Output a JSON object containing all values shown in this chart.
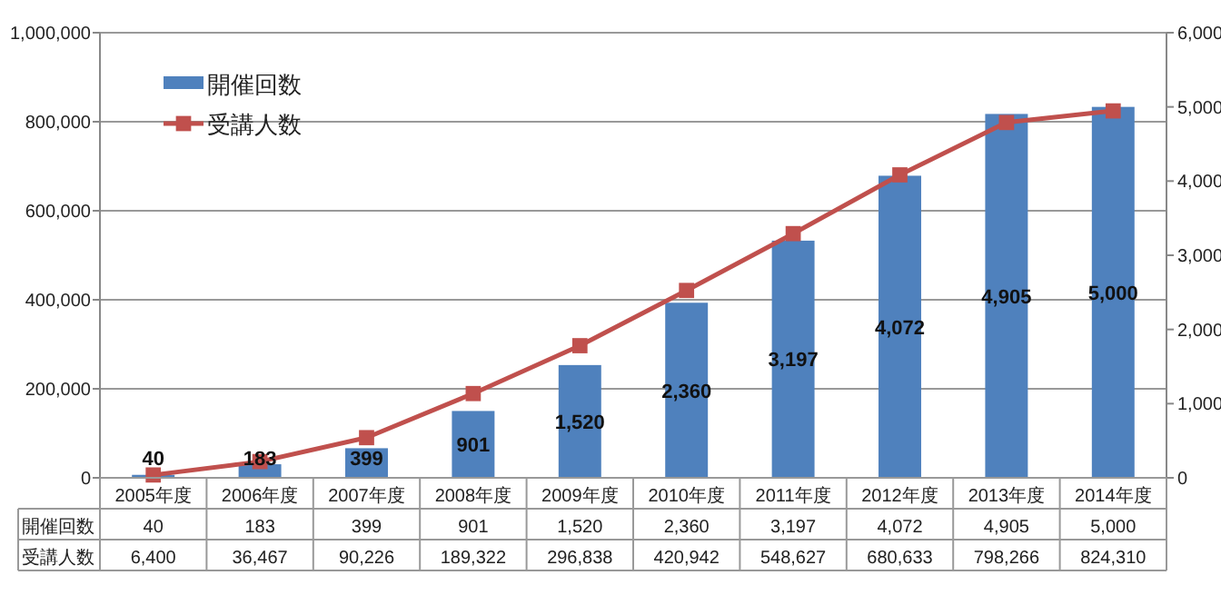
{
  "chart_data": {
    "type": "bar",
    "categories": [
      "2005年度",
      "2006年度",
      "2007年度",
      "2008年度",
      "2009年度",
      "2010年度",
      "2011年度",
      "2012年度",
      "2013年度",
      "2014年度"
    ],
    "series": [
      {
        "name": "開催回数",
        "axis": "y2",
        "color": "#4f81bd",
        "values": [
          40,
          183,
          399,
          901,
          1520,
          2360,
          3197,
          4072,
          4905,
          5000
        ],
        "value_labels": [
          "40",
          "183",
          "399",
          "901",
          "1,520",
          "2,360",
          "3,197",
          "4,072",
          "4,905",
          "5,000"
        ]
      },
      {
        "name": "受講人数",
        "type": "line",
        "axis": "y",
        "color": "#c0504d",
        "marker": "square",
        "values": [
          6400,
          36467,
          90226,
          189322,
          296838,
          420942,
          548627,
          680633,
          798266,
          824310
        ],
        "value_labels": [
          "6,400",
          "36,467",
          "90,226",
          "189,322",
          "296,838",
          "420,942",
          "548,627",
          "680,633",
          "798,266",
          "824,310"
        ]
      }
    ],
    "ylim": [
      0,
      1000000
    ],
    "yticks": [
      0,
      {
        "value": 200000,
        "label": "200,000"
      },
      {
        "value": 400000,
        "label": "400,000"
      },
      {
        "value": 600000,
        "label": "600,000"
      },
      {
        "value": 800000,
        "label": "800,000"
      },
      {
        "value": 1000000,
        "label": "1,000,000"
      }
    ],
    "y2lim": [
      0,
      6000
    ],
    "y2ticks": [
      0,
      {
        "value": 1000,
        "label": "1,000"
      },
      {
        "value": 2000,
        "label": "2,000"
      },
      {
        "value": 3000,
        "label": "3,000"
      },
      {
        "value": 4000,
        "label": "4,000"
      },
      {
        "value": 5000,
        "label": "5,000"
      },
      {
        "value": 6000,
        "label": "6,000"
      }
    ],
    "grid": "y",
    "legend": "top left"
  }
}
